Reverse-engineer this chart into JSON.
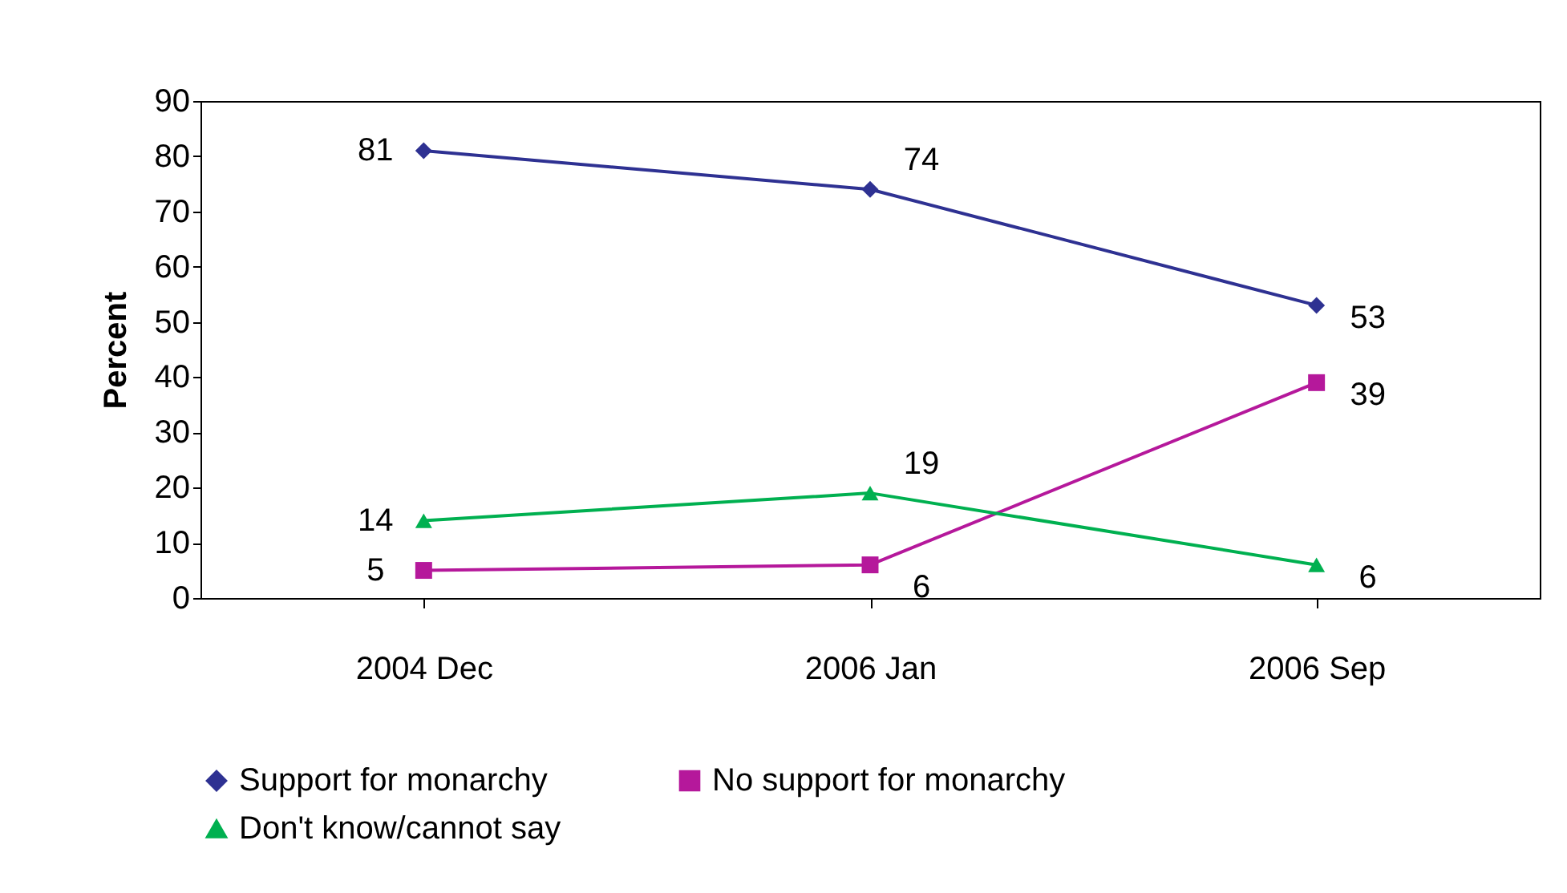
{
  "chart_data": {
    "type": "line",
    "ylabel": "Percent",
    "categories": [
      "2004 Dec",
      "2006 Jan",
      "2006 Sep"
    ],
    "ylim": [
      0,
      90
    ],
    "yticks": [
      0,
      10,
      20,
      30,
      40,
      50,
      60,
      70,
      80,
      90
    ],
    "grid": false,
    "legend": "bottom",
    "data_labels": true,
    "series": [
      {
        "name": "Support for monarchy",
        "color": "#2e3192",
        "marker": "diamond",
        "values": [
          81,
          74,
          53
        ]
      },
      {
        "name": "No support for monarchy",
        "color": "#b5189b",
        "marker": "square",
        "values": [
          5,
          6,
          39
        ]
      },
      {
        "name": "Don't know/cannot say",
        "color": "#00b050",
        "marker": "triangle",
        "values": [
          14,
          19,
          6
        ]
      }
    ]
  }
}
